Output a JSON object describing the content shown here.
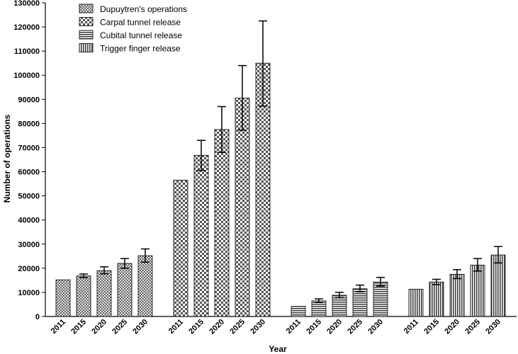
{
  "chart_data": {
    "type": "bar",
    "title": "",
    "xlabel": "Year",
    "ylabel": "Number of operations",
    "ylim": [
      0,
      130000
    ],
    "yticks": [
      0,
      10000,
      20000,
      30000,
      40000,
      50000,
      60000,
      70000,
      80000,
      90000,
      100000,
      110000,
      120000,
      130000
    ],
    "categories": [
      "2011",
      "2015",
      "2020",
      "2025",
      "2030"
    ],
    "grid": false,
    "legend_position": "top-left",
    "series": [
      {
        "name": "Dupuytren's operations",
        "pattern": "crosshatch",
        "values": [
          15200,
          16800,
          19000,
          22000,
          25200
        ],
        "error_low": [
          15200,
          16100,
          17700,
          20000,
          22500
        ],
        "error_high": [
          15200,
          17600,
          20600,
          24000,
          28000
        ]
      },
      {
        "name": "Carpal tunnel release",
        "pattern": "checker",
        "values": [
          56500,
          66800,
          77500,
          90500,
          105000
        ],
        "error_low": [
          56500,
          60500,
          68000,
          77200,
          87200
        ],
        "error_high": [
          56500,
          73000,
          87000,
          104000,
          122500
        ]
      },
      {
        "name": "Cubital tunnel release",
        "pattern": "horizontal",
        "values": [
          4200,
          6500,
          8800,
          11500,
          14300
        ],
        "error_low": [
          4200,
          5800,
          7800,
          10200,
          12600
        ],
        "error_high": [
          4200,
          7300,
          10000,
          13000,
          16200
        ]
      },
      {
        "name": "Trigger finger release",
        "pattern": "vertical",
        "values": [
          11300,
          14300,
          17500,
          21300,
          25500
        ],
        "error_low": [
          11300,
          13200,
          15700,
          18800,
          22200
        ],
        "error_high": [
          11300,
          15400,
          19400,
          24000,
          29000
        ]
      }
    ]
  }
}
